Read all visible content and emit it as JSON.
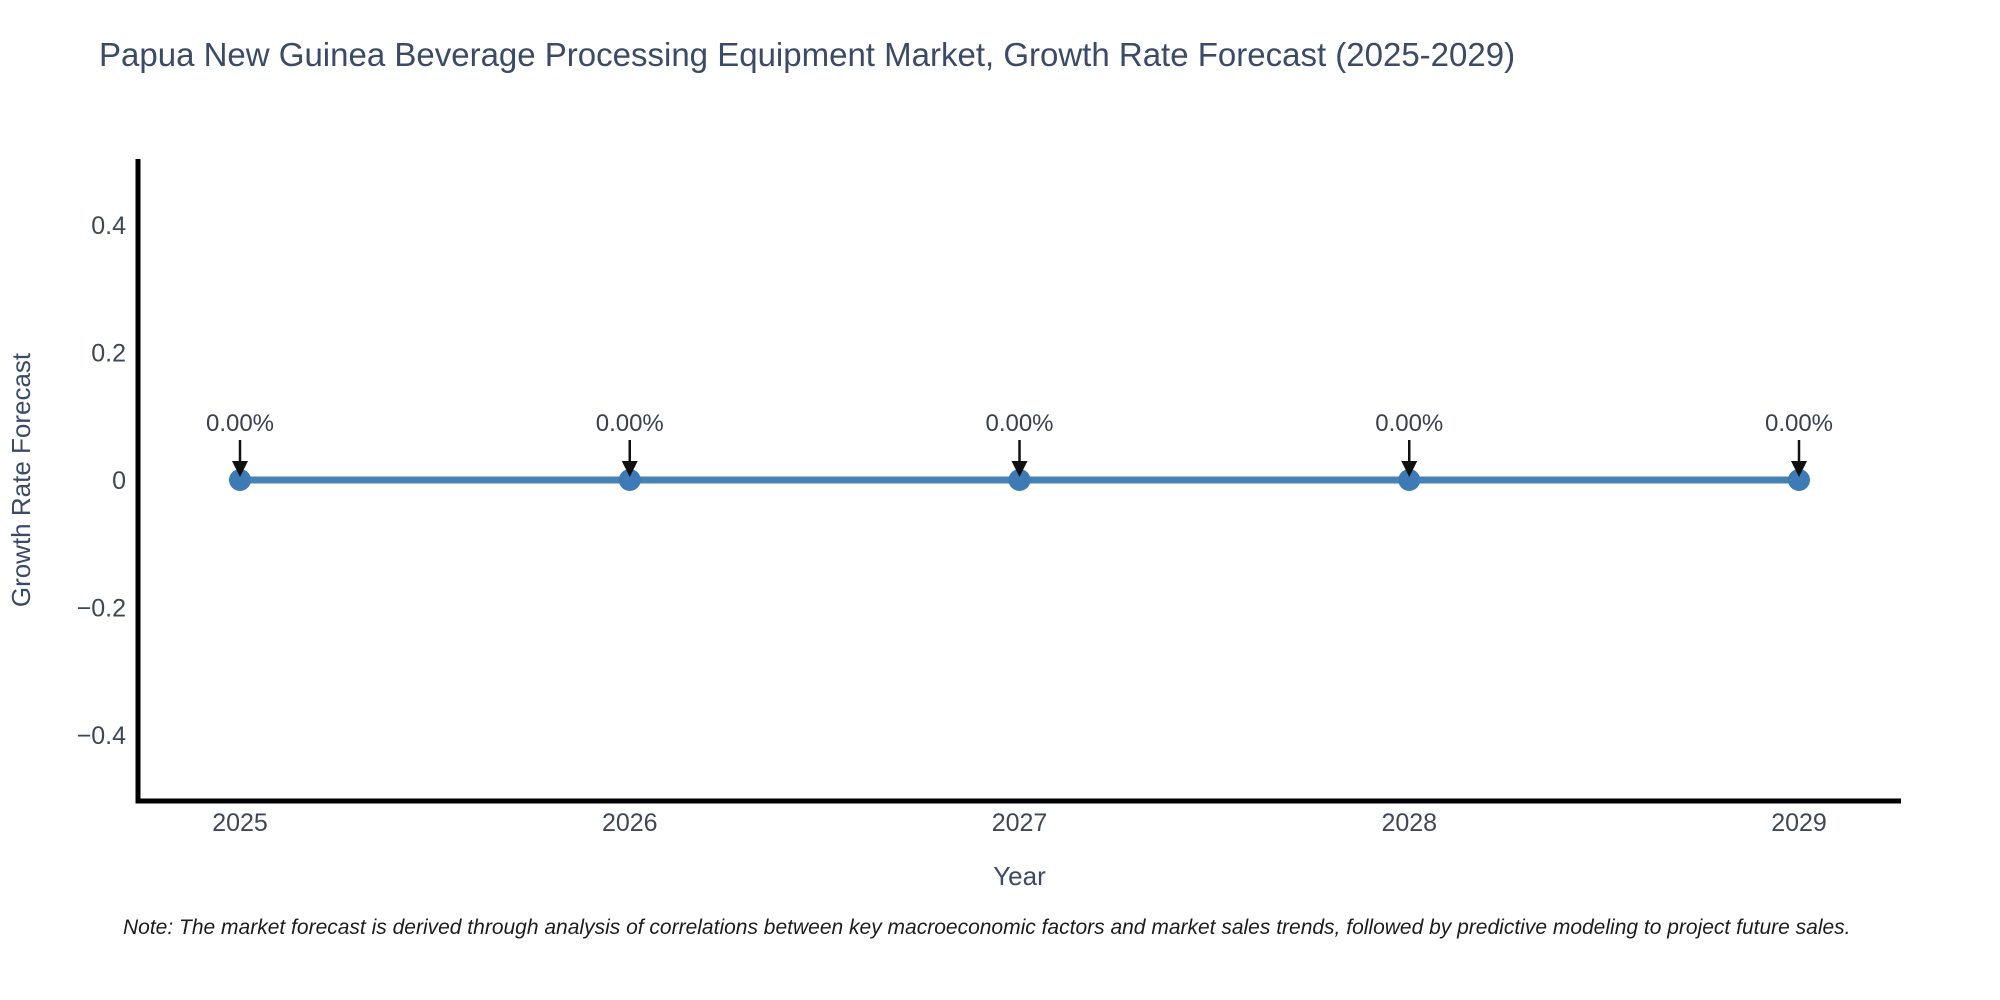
{
  "title": "Papua New Guinea Beverage Processing Equipment Market, Growth Rate Forecast (2025-2029)",
  "note": "Note: The market forecast is derived through analysis of correlations between key macroeconomic factors and market sales trends, followed by predictive modeling to project future sales.",
  "chart_data": {
    "type": "line",
    "title": "Papua New Guinea Beverage Processing Equipment Market, Growth Rate Forecast (2025-2029)",
    "x": [
      2025,
      2026,
      2027,
      2028,
      2029
    ],
    "xtick_labels": [
      "2025",
      "2026",
      "2027",
      "2028",
      "2029"
    ],
    "series": [
      {
        "name": "Growth Rate Forecast",
        "values": [
          0,
          0,
          0,
          0,
          0
        ]
      }
    ],
    "point_labels": [
      "0.00%",
      "0.00%",
      "0.00%",
      "0.00%",
      "0.00%"
    ],
    "xlabel": "Year",
    "ylabel": "Growth Rate Forecast",
    "ylim": [
      -0.5,
      0.5
    ],
    "ytick_values": [
      0.4,
      0.2,
      0,
      -0.2,
      -0.4
    ],
    "ytick_labels": [
      "0.4",
      "0.2",
      "0",
      "−0.2",
      "−0.4"
    ],
    "grid": false,
    "legend": false,
    "annotation_arrows": true,
    "colors": {
      "line": "#4682b4",
      "marker": "#3e7bb6",
      "arrow": "#111111",
      "spine": "#000000",
      "tick_label": "#3f4756",
      "axis_label": "#3b4a66",
      "annotation_text": "#39404e"
    }
  }
}
